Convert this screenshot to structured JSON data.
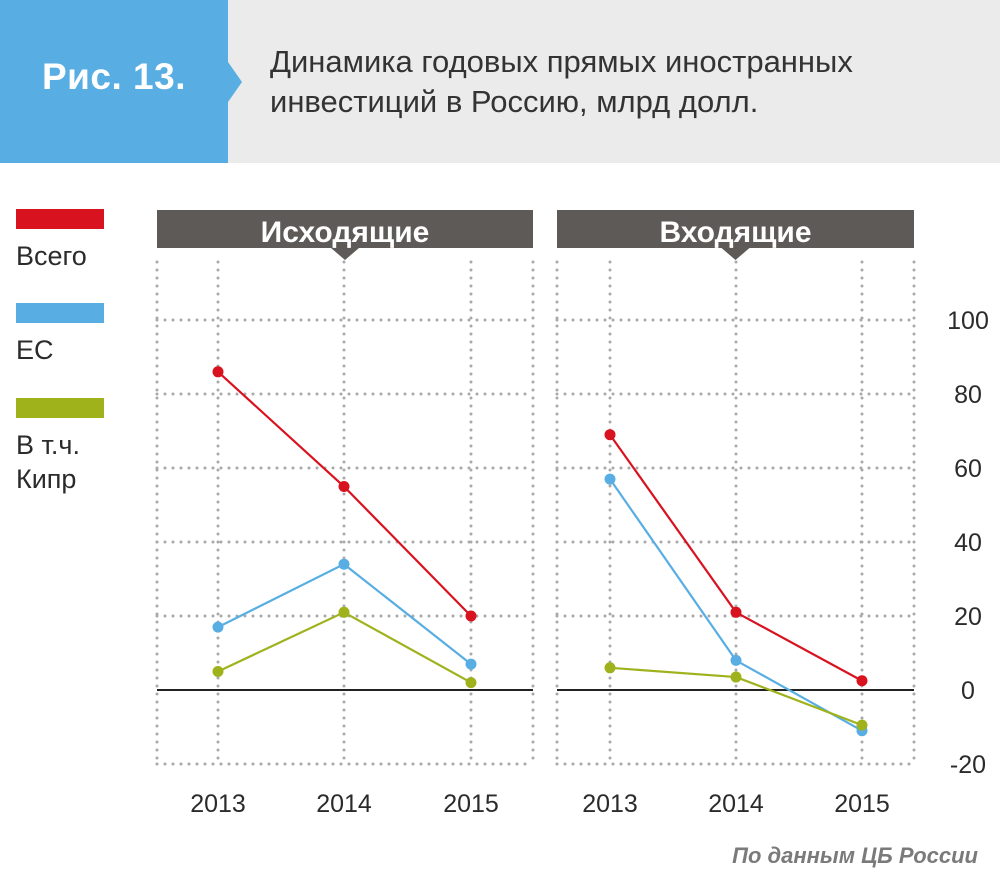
{
  "header": {
    "figure_label": "Рис. 13.",
    "title_line1": "Динамика годовых прямых иностранных",
    "title_line2": "инвестиций в Россию, млрд долл."
  },
  "legend": [
    {
      "label_lines": [
        "Всего"
      ],
      "color": "#d9121f"
    },
    {
      "label_lines": [
        "ЕС"
      ],
      "color": "#58aee3"
    },
    {
      "label_lines": [
        "В т.ч.",
        "Кипр"
      ],
      "color": "#9fb21c"
    }
  ],
  "source": "По данным ЦБ России",
  "colors": {
    "panel_header": "#5e5a57",
    "grid": "#a9a9a9",
    "zero_line": "#222222"
  },
  "chart_data": [
    {
      "type": "line",
      "title": "Исходящие",
      "x": [
        "2013",
        "2014",
        "2015"
      ],
      "ylim": [
        -20,
        120
      ],
      "yticks": [
        -20,
        0,
        20,
        40,
        60,
        80,
        100
      ],
      "series": [
        {
          "name": "Всего",
          "color": "#d9121f",
          "values": [
            86,
            55,
            20
          ]
        },
        {
          "name": "ЕС",
          "color": "#58aee3",
          "values": [
            17,
            34,
            7
          ]
        },
        {
          "name": "В т.ч. Кипр",
          "color": "#9fb21c",
          "values": [
            5,
            21,
            2
          ]
        }
      ]
    },
    {
      "type": "line",
      "title": "Входящие",
      "x": [
        "2013",
        "2014",
        "2015"
      ],
      "ylim": [
        -20,
        120
      ],
      "yticks": [
        -20,
        0,
        20,
        40,
        60,
        80,
        100
      ],
      "ytick_labels": [
        "-20",
        "0",
        "20",
        "40",
        "60",
        "80",
        "100"
      ],
      "series": [
        {
          "name": "Всего",
          "color": "#d9121f",
          "values": [
            69,
            21,
            2.5
          ]
        },
        {
          "name": "ЕС",
          "color": "#58aee3",
          "values": [
            57,
            8,
            -11
          ]
        },
        {
          "name": "В т.ч. Кипр",
          "color": "#9fb21c",
          "values": [
            6,
            3.5,
            -9.5
          ]
        }
      ]
    }
  ]
}
